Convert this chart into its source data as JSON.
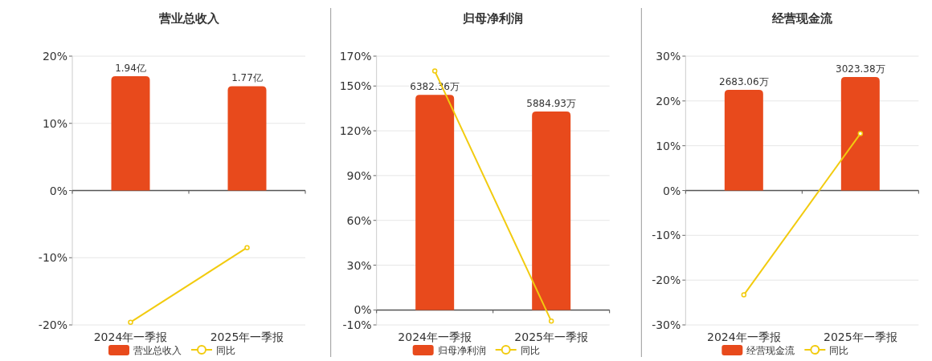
{
  "chart_data": [
    {
      "type": "bar",
      "title": "营业总收入",
      "categories": [
        "2024年一季报",
        "2025年一季报"
      ],
      "series": [
        {
          "name": "营业总收入",
          "axis": "y2",
          "color": "#e84a1c",
          "values": [
            1.94,
            1.77
          ],
          "value_labels": [
            "1.94亿",
            "1.77亿"
          ]
        },
        {
          "name": "同比",
          "type": "line",
          "color": "#f2cb0f",
          "values": [
            -19.6,
            -8.5
          ]
        }
      ],
      "ylim": [
        -20,
        20
      ],
      "yticks": [
        {
          "value": -20,
          "label": "-20%"
        },
        {
          "value": -10,
          "label": "-10%"
        },
        {
          "value": 0,
          "label": "0%"
        },
        {
          "value": 10,
          "label": "10%"
        },
        {
          "value": 20,
          "label": "20%"
        }
      ],
      "y2lim": [
        -2.28,
        2.28
      ],
      "grid": "y",
      "legend": "bottom",
      "marker": "circle"
    },
    {
      "type": "bar",
      "title": "归母净利润",
      "categories": [
        "2024年一季报",
        "2025年一季报"
      ],
      "series": [
        {
          "name": "归母净利润",
          "axis": "y2",
          "color": "#e84a1c",
          "values": [
            6382.36,
            5884.93
          ],
          "value_labels": [
            "6382.36万",
            "5884.93万"
          ]
        },
        {
          "name": "同比",
          "type": "line",
          "color": "#f2cb0f",
          "values": [
            160,
            -7.5
          ]
        }
      ],
      "ylim": [
        -10,
        170
      ],
      "yticks": [
        {
          "value": -10,
          "label": "-10%"
        },
        {
          "value": 0,
          "label": "0%"
        },
        {
          "value": 30,
          "label": "30%"
        },
        {
          "value": 60,
          "label": "60%"
        },
        {
          "value": 90,
          "label": "90%"
        },
        {
          "value": 120,
          "label": "120%"
        },
        {
          "value": 150,
          "label": "150%"
        },
        {
          "value": 170,
          "label": "170%"
        }
      ],
      "y2lim": [
        -443,
        7530
      ],
      "grid": "y",
      "legend": "bottom",
      "marker": "circle"
    },
    {
      "type": "bar",
      "title": "经营现金流",
      "categories": [
        "2024年一季报",
        "2025年一季报"
      ],
      "series": [
        {
          "name": "经营现金流",
          "axis": "y2",
          "color": "#e84a1c",
          "values": [
            2683.06,
            3023.38
          ],
          "value_labels": [
            "2683.06万",
            "3023.38万"
          ]
        },
        {
          "name": "同比",
          "type": "line",
          "color": "#f2cb0f",
          "values": [
            -23.3,
            12.7
          ]
        }
      ],
      "ylim": [
        -30,
        30
      ],
      "yticks": [
        {
          "value": -30,
          "label": "-30%"
        },
        {
          "value": -20,
          "label": "-20%"
        },
        {
          "value": -10,
          "label": "-10%"
        },
        {
          "value": 0,
          "label": "0%"
        },
        {
          "value": 10,
          "label": "10%"
        },
        {
          "value": 20,
          "label": "20%"
        },
        {
          "value": 30,
          "label": "30%"
        }
      ],
      "y2lim": [
        -3580,
        3580
      ],
      "grid": "y",
      "legend": "bottom",
      "marker": "circle"
    }
  ]
}
